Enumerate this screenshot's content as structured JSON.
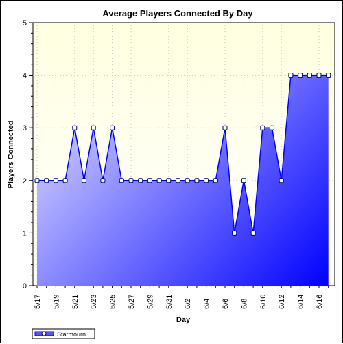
{
  "chart_data": {
    "type": "area",
    "title": "Average Players Connected By Day",
    "xlabel": "Day",
    "ylabel": "Players Connected",
    "ylim": [
      0,
      5
    ],
    "y_ticks": [
      "0",
      "1",
      "2",
      "3",
      "4",
      "5"
    ],
    "categories": [
      "5/17",
      "5/18",
      "5/19",
      "5/20",
      "5/21",
      "5/22",
      "5/23",
      "5/24",
      "5/25",
      "5/26",
      "5/27",
      "5/28",
      "5/29",
      "5/30",
      "5/31",
      "6/1",
      "6/2",
      "6/3",
      "6/4",
      "6/5",
      "6/6",
      "6/7",
      "6/8",
      "6/9",
      "6/10",
      "6/11",
      "6/12",
      "6/13",
      "6/14",
      "6/15",
      "6/16",
      "6/17"
    ],
    "x_tick_labels": [
      "5/17",
      "5/19",
      "5/21",
      "5/23",
      "5/25",
      "5/27",
      "5/29",
      "5/31",
      "6/2",
      "6/4",
      "6/6",
      "6/8",
      "6/10",
      "6/12",
      "6/14",
      "6/16"
    ],
    "series": [
      {
        "name": "Starmourn",
        "values": [
          2,
          2,
          2,
          2,
          3,
          2,
          3,
          2,
          3,
          2,
          2,
          2,
          2,
          2,
          2,
          2,
          2,
          2,
          2,
          2,
          3,
          1,
          2,
          1,
          3,
          3,
          2,
          4,
          4,
          4,
          4,
          4
        ]
      }
    ],
    "grid": true,
    "legend_position": "bottom-left",
    "colors": {
      "line": "#0000ff",
      "area_light": "#c8c8ff",
      "area_dark": "#0000ff",
      "plot_bg_top": "#ffffe0",
      "plot_bg_bottom": "#ffffff",
      "marker_fill": "#ffffff",
      "marker_stroke": "#000080"
    }
  }
}
